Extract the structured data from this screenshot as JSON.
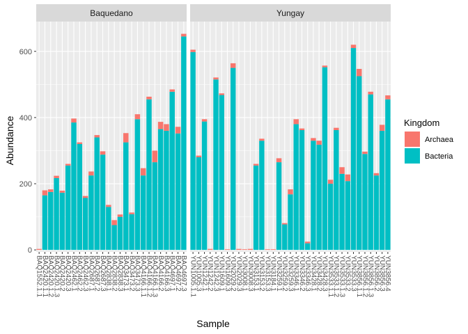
{
  "chart_data": {
    "type": "bar",
    "stacked": true,
    "facet_by": "Site",
    "xlabel": "Sample",
    "ylabel": "Abundance",
    "y_ticks": [
      0,
      200,
      400,
      600
    ],
    "ylim": [
      -6,
      690
    ],
    "grid": true,
    "legend": {
      "title": "Kingdom",
      "position": "right",
      "entries": [
        {
          "name": "Archaea",
          "color": "#F8766D"
        },
        {
          "name": "Bacteria",
          "color": "#00BFC4"
        }
      ]
    },
    "stack_order": [
      "Bacteria",
      "Archaea"
    ],
    "panels": [
      {
        "label": "Baquedano",
        "samples": [
          {
            "id": "BAQ1552.1.1",
            "bacteria": 0,
            "archaea": 3
          },
          {
            "id": "BAQ2420.1.1",
            "bacteria": 165,
            "archaea": 15
          },
          {
            "id": "BAQ2420.1.2",
            "bacteria": 175,
            "archaea": 8
          },
          {
            "id": "BAQ2420.1.3",
            "bacteria": 217,
            "archaea": 7
          },
          {
            "id": "BAQ2420.2",
            "bacteria": 173,
            "archaea": 6
          },
          {
            "id": "BAQ2420.3",
            "bacteria": 255,
            "archaea": 5
          },
          {
            "id": "BAQ2462.1",
            "bacteria": 385,
            "archaea": 12
          },
          {
            "id": "BAQ2462.2",
            "bacteria": 320,
            "archaea": 5
          },
          {
            "id": "BAQ2462.3",
            "bacteria": 157,
            "archaea": 6
          },
          {
            "id": "BAQ2687.1",
            "bacteria": 225,
            "archaea": 12
          },
          {
            "id": "BAQ2687.2",
            "bacteria": 340,
            "archaea": 7
          },
          {
            "id": "BAQ2687.3",
            "bacteria": 288,
            "archaea": 10
          },
          {
            "id": "BAQ2838.1",
            "bacteria": 130,
            "archaea": 6
          },
          {
            "id": "BAQ2838.2",
            "bacteria": 75,
            "archaea": 15
          },
          {
            "id": "BAQ2838.3",
            "bacteria": 100,
            "archaea": 7
          },
          {
            "id": "BAQ3473.1",
            "bacteria": 325,
            "archaea": 28
          },
          {
            "id": "BAQ3473.2",
            "bacteria": 108,
            "archaea": 5
          },
          {
            "id": "BAQ3473.3",
            "bacteria": 395,
            "archaea": 15
          },
          {
            "id": "BAQ4166.1.1",
            "bacteria": 225,
            "archaea": 22
          },
          {
            "id": "BAQ4166.1.2",
            "bacteria": 455,
            "archaea": 8
          },
          {
            "id": "BAQ4166.1.3",
            "bacteria": 265,
            "archaea": 35
          },
          {
            "id": "BAQ4166.2",
            "bacteria": 365,
            "archaea": 22
          },
          {
            "id": "BAQ4166.3",
            "bacteria": 360,
            "archaea": 20
          },
          {
            "id": "BAQ4697.1",
            "bacteria": 478,
            "archaea": 7
          },
          {
            "id": "BAQ4697.2",
            "bacteria": 352,
            "archaea": 20
          },
          {
            "id": "BAQ4697.3",
            "bacteria": 645,
            "archaea": 8
          }
        ]
      },
      {
        "label": "Yungay",
        "samples": [
          {
            "id": "YUN1005.1.1",
            "bacteria": 598,
            "archaea": 7
          },
          {
            "id": "YUN1005.3",
            "bacteria": 280,
            "archaea": 5
          },
          {
            "id": "YUN1242.1",
            "bacteria": 388,
            "archaea": 7
          },
          {
            "id": "YUN1242.2",
            "bacteria": 0,
            "archaea": 3
          },
          {
            "id": "YUN1242.3",
            "bacteria": 515,
            "archaea": 6
          },
          {
            "id": "YUN1609.1",
            "bacteria": 468,
            "archaea": 5
          },
          {
            "id": "YUN1609.3",
            "bacteria": 0,
            "archaea": 2
          },
          {
            "id": "YUN2029.2",
            "bacteria": 550,
            "archaea": 14
          },
          {
            "id": "YUN2029.3",
            "bacteria": 0,
            "archaea": 3
          },
          {
            "id": "YUN3008.1",
            "bacteria": 0,
            "archaea": 2
          },
          {
            "id": "YUN3008.3",
            "bacteria": 0,
            "archaea": 3
          },
          {
            "id": "YUN3153.1",
            "bacteria": 255,
            "archaea": 5
          },
          {
            "id": "YUN3153.2",
            "bacteria": 330,
            "archaea": 6
          },
          {
            "id": "YUN3153.3",
            "bacteria": 0,
            "archaea": 2
          },
          {
            "id": "YUN3184.1",
            "bacteria": 0,
            "archaea": 2
          },
          {
            "id": "YUN3259.1",
            "bacteria": 265,
            "archaea": 12
          },
          {
            "id": "YUN3259.2",
            "bacteria": 77,
            "archaea": 4
          },
          {
            "id": "YUN3259.3",
            "bacteria": 168,
            "archaea": 15
          },
          {
            "id": "YUN3346.1",
            "bacteria": 380,
            "archaea": 15
          },
          {
            "id": "YUN3346.2",
            "bacteria": 362,
            "archaea": 5
          },
          {
            "id": "YUN3346.3",
            "bacteria": 20,
            "archaea": 5
          },
          {
            "id": "YUN3428.1",
            "bacteria": 330,
            "archaea": 8
          },
          {
            "id": "YUN3428.2",
            "bacteria": 318,
            "archaea": 12
          },
          {
            "id": "YUN3428.3",
            "bacteria": 552,
            "archaea": 5
          },
          {
            "id": "YUN3533.1.1",
            "bacteria": 200,
            "archaea": 12
          },
          {
            "id": "YUN3533.1.2",
            "bacteria": 362,
            "archaea": 7
          },
          {
            "id": "YUN3533.1.3",
            "bacteria": 230,
            "archaea": 20
          },
          {
            "id": "YUN3533.2",
            "bacteria": 208,
            "archaea": 20
          },
          {
            "id": "YUN3533.3",
            "bacteria": 610,
            "archaea": 10
          },
          {
            "id": "YUN3856.1.1",
            "bacteria": 525,
            "archaea": 22
          },
          {
            "id": "YUN3856.1.2",
            "bacteria": 290,
            "archaea": 7
          },
          {
            "id": "YUN3856.1.3",
            "bacteria": 470,
            "archaea": 8
          },
          {
            "id": "YUN3856.2",
            "bacteria": 225,
            "archaea": 7
          },
          {
            "id": "YUN3856.3",
            "bacteria": 360,
            "archaea": 18
          },
          {
            "id": "YUN3856.4",
            "bacteria": 455,
            "archaea": 12
          }
        ]
      }
    ]
  }
}
